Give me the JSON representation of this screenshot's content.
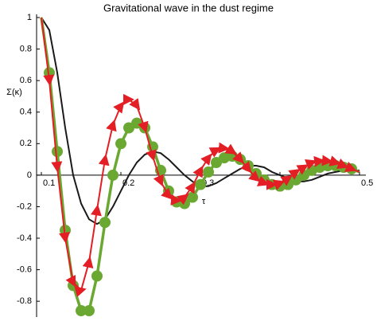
{
  "chart_data": {
    "type": "line",
    "title": "Gravitational wave in the dust regime",
    "x_label": "τ",
    "y_label": "Σ(κ)",
    "x": [
      0.1,
      0.11,
      0.12,
      0.13,
      0.14,
      0.15,
      0.16,
      0.17,
      0.18,
      0.19,
      0.2,
      0.21,
      0.22,
      0.23,
      0.24,
      0.25,
      0.26,
      0.27,
      0.28,
      0.29,
      0.3,
      0.31,
      0.32,
      0.33,
      0.34,
      0.35,
      0.36,
      0.37,
      0.38,
      0.39,
      0.4,
      0.41,
      0.42,
      0.43,
      0.44,
      0.45,
      0.46,
      0.47,
      0.48,
      0.49,
      0.5
    ],
    "series": [
      {
        "color": "#1a1a1a",
        "values": [
          1.0,
          0.92,
          0.65,
          0.3,
          0.0,
          -0.18,
          -0.28,
          -0.31,
          -0.28,
          -0.2,
          -0.1,
          0.0,
          0.08,
          0.13,
          0.15,
          0.14,
          0.1,
          0.05,
          0.0,
          -0.04,
          -0.07,
          -0.07,
          -0.05,
          -0.02,
          0.01,
          0.04,
          0.06,
          0.06,
          0.05,
          0.02,
          0.0,
          -0.02,
          -0.04,
          -0.04,
          -0.03,
          -0.01,
          0.01,
          0.02,
          0.03,
          0.03,
          0.03
        ]
      },
      {
        "color": "#6aa832",
        "values": [
          1.0,
          0.65,
          0.15,
          -0.35,
          -0.7,
          -0.86,
          -0.86,
          -0.64,
          -0.3,
          0.0,
          0.2,
          0.3,
          0.33,
          0.3,
          0.18,
          0.03,
          -0.1,
          -0.17,
          -0.18,
          -0.14,
          -0.06,
          0.02,
          0.08,
          0.11,
          0.12,
          0.1,
          0.06,
          0.01,
          -0.03,
          -0.06,
          -0.07,
          -0.06,
          -0.03,
          0.0,
          0.03,
          0.05,
          0.06,
          0.06,
          0.05,
          0.04,
          0.02
        ]
      },
      {
        "color": "#e31e24",
        "values": [
          1.0,
          0.6,
          0.05,
          -0.4,
          -0.68,
          -0.73,
          -0.55,
          -0.22,
          0.1,
          0.32,
          0.44,
          0.48,
          0.44,
          0.3,
          0.12,
          -0.04,
          -0.13,
          -0.16,
          -0.14,
          -0.07,
          0.03,
          0.11,
          0.16,
          0.17,
          0.15,
          0.1,
          0.04,
          -0.02,
          -0.05,
          -0.06,
          -0.05,
          -0.02,
          0.02,
          0.05,
          0.08,
          0.09,
          0.09,
          0.08,
          0.06,
          0.04,
          0.02
        ]
      }
    ],
    "xlim": [
      0.1,
      0.5
    ],
    "ylim": [
      -0.88,
      1
    ],
    "xticks": [
      0.1,
      0.2,
      0.3,
      0.4,
      0.5
    ],
    "yticks": [
      -0.8,
      -0.6,
      -0.4,
      -0.2,
      0,
      0.2,
      0.4,
      0.6,
      0.8,
      1
    ],
    "grid": false
  }
}
